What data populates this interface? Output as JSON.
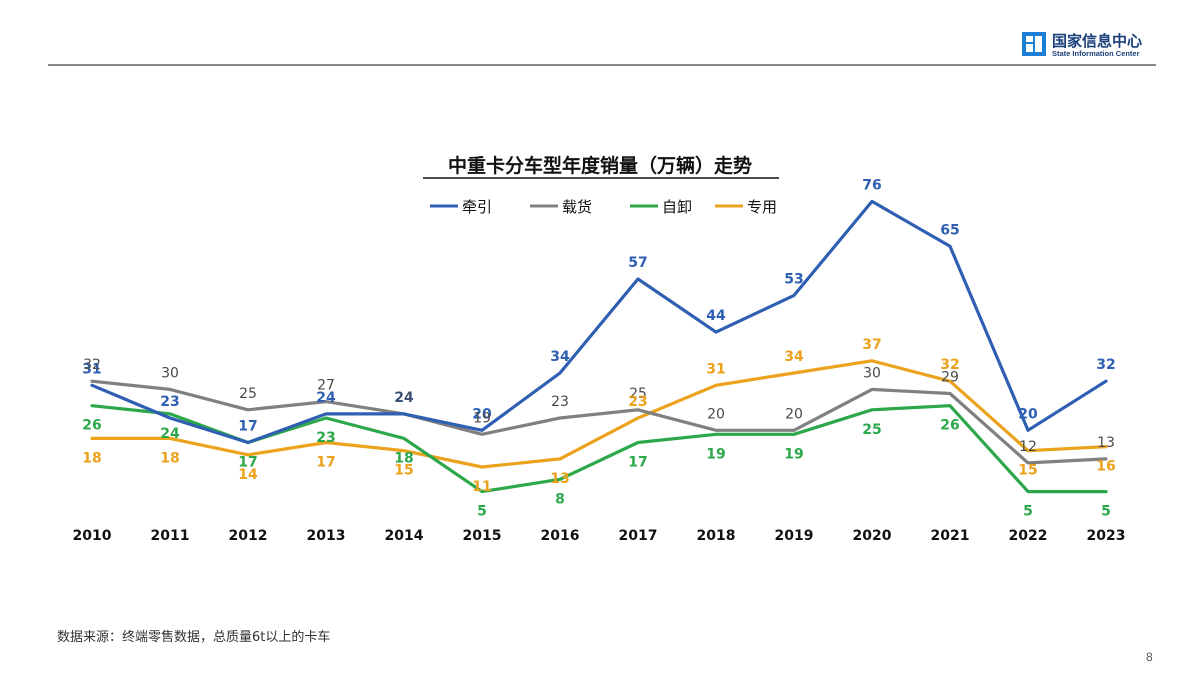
{
  "brand": {
    "name_cn": "国家信息中心",
    "name_en": "State Information Center"
  },
  "footer": {
    "source_note": "数据来源：终端零售数据，总质量6t以上的卡车",
    "page_number": "8"
  },
  "colors": {
    "牵引": "#2f5fb3",
    "载货": "#808080",
    "自卸": "#2ca84a",
    "专用": "#eba21c",
    "logo": "#1b7fd4"
  },
  "chart_data": {
    "type": "line",
    "title": "中重卡分车型年度销量（万辆）走势",
    "legend_position": "top-center",
    "grid": false,
    "categories": [
      "2010",
      "2011",
      "2012",
      "2013",
      "2014",
      "2015",
      "2016",
      "2017",
      "2018",
      "2019",
      "2020",
      "2021",
      "2022",
      "2023"
    ],
    "ylim": [
      0,
      80
    ],
    "series": [
      {
        "name": "牵引",
        "values": [
          31,
          23,
          17,
          24,
          24,
          20,
          34,
          57,
          44,
          53,
          76,
          65,
          20,
          32
        ],
        "labels": [
          "31",
          "23",
          "17",
          "24",
          "24",
          "20",
          "34",
          "57",
          "44",
          "53",
          "76",
          "65",
          "20",
          "32"
        ]
      },
      {
        "name": "载货",
        "values": [
          32,
          30,
          25,
          27,
          24,
          19,
          23,
          25,
          20,
          20,
          30,
          29,
          12,
          13
        ],
        "labels": [
          "32",
          "30",
          "25",
          "27",
          "24",
          "19",
          "23",
          "25",
          "20",
          "20",
          "30",
          "29",
          "12",
          "13"
        ]
      },
      {
        "name": "自卸",
        "values": [
          26,
          24,
          17,
          23,
          18,
          5,
          8,
          17,
          19,
          19,
          25,
          26,
          5,
          5
        ],
        "labels": [
          "26",
          "24",
          "17",
          "23",
          "18",
          "5",
          "8",
          "17",
          "19",
          "19",
          "25",
          "26",
          "5",
          "5"
        ]
      },
      {
        "name": "专用",
        "values": [
          18,
          18,
          14,
          17,
          15,
          11,
          13,
          23,
          31,
          34,
          37,
          32,
          15,
          16
        ],
        "labels": [
          "18",
          "18",
          "14",
          "17",
          "15",
          "11",
          "13",
          "23",
          "31",
          "34",
          "37",
          "32",
          "15",
          "16"
        ]
      }
    ]
  }
}
